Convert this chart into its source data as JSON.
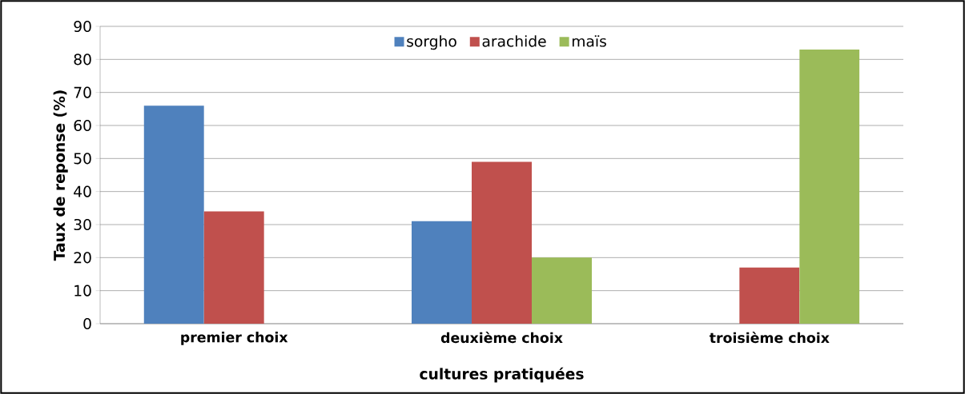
{
  "chart_data": {
    "type": "bar",
    "xlabel": "cultures pratiquées",
    "ylabel": "Taux de reponse (%)",
    "categories": [
      "premier choix",
      "deuxième choix",
      "troisième choix"
    ],
    "series": [
      {
        "name": "sorgho",
        "color": "#4f81bd",
        "values": [
          66,
          31,
          null
        ]
      },
      {
        "name": "arachide",
        "color": "#c0504d",
        "values": [
          34,
          49,
          17
        ]
      },
      {
        "name": "maïs",
        "color": "#9bbb59",
        "values": [
          null,
          20,
          83
        ]
      }
    ],
    "ylim": [
      0,
      90
    ],
    "yticks": [
      0,
      10,
      20,
      30,
      40,
      50,
      60,
      70,
      80,
      90
    ],
    "grid": "y",
    "legend": "top"
  }
}
